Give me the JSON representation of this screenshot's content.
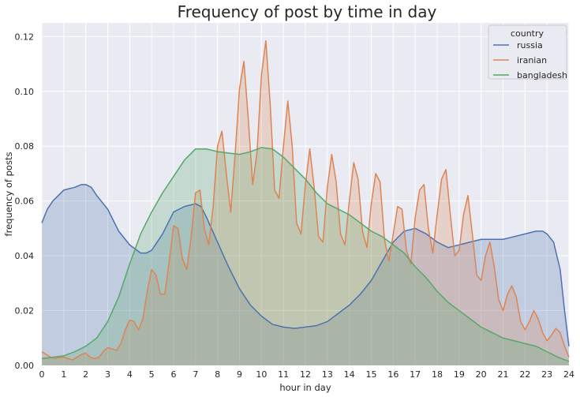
{
  "chart_data": {
    "type": "area",
    "title": "Frequency of post by time in day",
    "xlabel": "hour in day",
    "ylabel": "frequency of posts",
    "xlim": [
      0,
      24
    ],
    "ylim": [
      0,
      0.125
    ],
    "x_ticks": [
      "0",
      "1",
      "2",
      "3",
      "4",
      "5",
      "6",
      "7",
      "8",
      "9",
      "10",
      "11",
      "12",
      "13",
      "14",
      "15",
      "16",
      "17",
      "18",
      "19",
      "20",
      "21",
      "22",
      "23",
      "24"
    ],
    "y_ticks": [
      "0.00",
      "0.02",
      "0.04",
      "0.06",
      "0.08",
      "0.10",
      "0.12"
    ],
    "y_tick_values": [
      0,
      0.02,
      0.04,
      0.06,
      0.08,
      0.1,
      0.12
    ],
    "grid": true,
    "legend": {
      "title": "country",
      "placement": "top-right"
    },
    "series": [
      {
        "name": "russia",
        "color": "#4c72b0",
        "points": [
          [
            0,
            0.052
          ],
          [
            0.25,
            0.057
          ],
          [
            0.5,
            0.06
          ],
          [
            1,
            0.064
          ],
          [
            1.5,
            0.065
          ],
          [
            1.8,
            0.066
          ],
          [
            2,
            0.066
          ],
          [
            2.25,
            0.065
          ],
          [
            2.5,
            0.062
          ],
          [
            3,
            0.057
          ],
          [
            3.5,
            0.049
          ],
          [
            4,
            0.044
          ],
          [
            4.5,
            0.041
          ],
          [
            4.75,
            0.041
          ],
          [
            5,
            0.042
          ],
          [
            5.5,
            0.048
          ],
          [
            6,
            0.056
          ],
          [
            6.5,
            0.058
          ],
          [
            7,
            0.059
          ],
          [
            7.25,
            0.058
          ],
          [
            7.5,
            0.054
          ],
          [
            8,
            0.045
          ],
          [
            8.5,
            0.036
          ],
          [
            9,
            0.028
          ],
          [
            9.5,
            0.022
          ],
          [
            10,
            0.018
          ],
          [
            10.5,
            0.015
          ],
          [
            11,
            0.014
          ],
          [
            11.5,
            0.0135
          ],
          [
            12,
            0.014
          ],
          [
            12.5,
            0.0145
          ],
          [
            13,
            0.016
          ],
          [
            13.5,
            0.019
          ],
          [
            14,
            0.022
          ],
          [
            14.5,
            0.026
          ],
          [
            15,
            0.031
          ],
          [
            15.5,
            0.038
          ],
          [
            16,
            0.045
          ],
          [
            16.5,
            0.049
          ],
          [
            17,
            0.05
          ],
          [
            17.5,
            0.048
          ],
          [
            18,
            0.045
          ],
          [
            18.5,
            0.043
          ],
          [
            19,
            0.044
          ],
          [
            19.5,
            0.045
          ],
          [
            20,
            0.046
          ],
          [
            20.5,
            0.046
          ],
          [
            21,
            0.046
          ],
          [
            21.5,
            0.047
          ],
          [
            22,
            0.048
          ],
          [
            22.5,
            0.049
          ],
          [
            22.8,
            0.049
          ],
          [
            23,
            0.048
          ],
          [
            23.3,
            0.045
          ],
          [
            23.6,
            0.035
          ],
          [
            23.8,
            0.02
          ],
          [
            24,
            0.007
          ]
        ]
      },
      {
        "name": "iranian",
        "color": "#dd8452",
        "points": [
          [
            0,
            0.005
          ],
          [
            0.2,
            0.004
          ],
          [
            0.4,
            0.003
          ],
          [
            0.6,
            0.0025
          ],
          [
            0.8,
            0.003
          ],
          [
            1,
            0.003
          ],
          [
            1.2,
            0.0025
          ],
          [
            1.4,
            0.002
          ],
          [
            1.6,
            0.003
          ],
          [
            1.8,
            0.004
          ],
          [
            2,
            0.0045
          ],
          [
            2.2,
            0.003
          ],
          [
            2.4,
            0.0025
          ],
          [
            2.6,
            0.003
          ],
          [
            2.8,
            0.005
          ],
          [
            3,
            0.0065
          ],
          [
            3.2,
            0.006
          ],
          [
            3.4,
            0.0055
          ],
          [
            3.6,
            0.008
          ],
          [
            3.8,
            0.013
          ],
          [
            4,
            0.0165
          ],
          [
            4.2,
            0.016
          ],
          [
            4.4,
            0.013
          ],
          [
            4.6,
            0.017
          ],
          [
            4.8,
            0.027
          ],
          [
            5,
            0.035
          ],
          [
            5.2,
            0.033
          ],
          [
            5.4,
            0.026
          ],
          [
            5.6,
            0.026
          ],
          [
            5.8,
            0.038
          ],
          [
            6,
            0.051
          ],
          [
            6.2,
            0.05
          ],
          [
            6.4,
            0.039
          ],
          [
            6.6,
            0.035
          ],
          [
            6.8,
            0.047
          ],
          [
            7,
            0.063
          ],
          [
            7.2,
            0.064
          ],
          [
            7.4,
            0.05
          ],
          [
            7.6,
            0.044
          ],
          [
            7.8,
            0.058
          ],
          [
            8,
            0.08
          ],
          [
            8.2,
            0.0855
          ],
          [
            8.4,
            0.07
          ],
          [
            8.6,
            0.056
          ],
          [
            8.8,
            0.077
          ],
          [
            9,
            0.101
          ],
          [
            9.2,
            0.111
          ],
          [
            9.4,
            0.09
          ],
          [
            9.6,
            0.066
          ],
          [
            9.8,
            0.078
          ],
          [
            10,
            0.106
          ],
          [
            10.2,
            0.1185
          ],
          [
            10.4,
            0.095
          ],
          [
            10.6,
            0.064
          ],
          [
            10.8,
            0.061
          ],
          [
            11,
            0.08
          ],
          [
            11.2,
            0.0965
          ],
          [
            11.4,
            0.08
          ],
          [
            11.6,
            0.052
          ],
          [
            11.8,
            0.048
          ],
          [
            12,
            0.066
          ],
          [
            12.2,
            0.079
          ],
          [
            12.4,
            0.065
          ],
          [
            12.6,
            0.047
          ],
          [
            12.8,
            0.045
          ],
          [
            13,
            0.065
          ],
          [
            13.2,
            0.077
          ],
          [
            13.4,
            0.067
          ],
          [
            13.6,
            0.048
          ],
          [
            13.8,
            0.044
          ],
          [
            14,
            0.06
          ],
          [
            14.2,
            0.074
          ],
          [
            14.4,
            0.068
          ],
          [
            14.6,
            0.049
          ],
          [
            14.8,
            0.043
          ],
          [
            15,
            0.059
          ],
          [
            15.2,
            0.07
          ],
          [
            15.4,
            0.067
          ],
          [
            15.6,
            0.046
          ],
          [
            15.8,
            0.038
          ],
          [
            16,
            0.048
          ],
          [
            16.2,
            0.058
          ],
          [
            16.4,
            0.057
          ],
          [
            16.6,
            0.042
          ],
          [
            16.8,
            0.037
          ],
          [
            17,
            0.054
          ],
          [
            17.2,
            0.064
          ],
          [
            17.4,
            0.066
          ],
          [
            17.6,
            0.05
          ],
          [
            17.8,
            0.041
          ],
          [
            18,
            0.055
          ],
          [
            18.2,
            0.068
          ],
          [
            18.4,
            0.0715
          ],
          [
            18.6,
            0.055
          ],
          [
            18.8,
            0.04
          ],
          [
            19,
            0.042
          ],
          [
            19.2,
            0.055
          ],
          [
            19.4,
            0.062
          ],
          [
            19.6,
            0.048
          ],
          [
            19.8,
            0.033
          ],
          [
            20,
            0.031
          ],
          [
            20.2,
            0.04
          ],
          [
            20.4,
            0.045
          ],
          [
            20.6,
            0.036
          ],
          [
            20.8,
            0.024
          ],
          [
            21,
            0.02
          ],
          [
            21.2,
            0.026
          ],
          [
            21.4,
            0.029
          ],
          [
            21.6,
            0.025
          ],
          [
            21.8,
            0.016
          ],
          [
            22,
            0.013
          ],
          [
            22.2,
            0.016
          ],
          [
            22.4,
            0.02
          ],
          [
            22.6,
            0.017
          ],
          [
            22.8,
            0.012
          ],
          [
            23,
            0.009
          ],
          [
            23.2,
            0.011
          ],
          [
            23.4,
            0.0135
          ],
          [
            23.6,
            0.012
          ],
          [
            23.8,
            0.007
          ],
          [
            24,
            0.003
          ]
        ]
      },
      {
        "name": "bangladesh",
        "color": "#55a868",
        "points": [
          [
            0,
            0.0025
          ],
          [
            0.5,
            0.003
          ],
          [
            1,
            0.0035
          ],
          [
            1.5,
            0.005
          ],
          [
            2,
            0.007
          ],
          [
            2.5,
            0.01
          ],
          [
            3,
            0.016
          ],
          [
            3.5,
            0.025
          ],
          [
            4,
            0.037
          ],
          [
            4.5,
            0.048
          ],
          [
            5,
            0.056
          ],
          [
            5.5,
            0.063
          ],
          [
            6,
            0.069
          ],
          [
            6.5,
            0.075
          ],
          [
            7,
            0.079
          ],
          [
            7.5,
            0.079
          ],
          [
            8,
            0.078
          ],
          [
            8.5,
            0.0775
          ],
          [
            9,
            0.077
          ],
          [
            9.5,
            0.078
          ],
          [
            10,
            0.0795
          ],
          [
            10.5,
            0.079
          ],
          [
            11,
            0.076
          ],
          [
            11.5,
            0.072
          ],
          [
            12,
            0.068
          ],
          [
            12.5,
            0.063
          ],
          [
            13,
            0.059
          ],
          [
            13.5,
            0.057
          ],
          [
            14,
            0.055
          ],
          [
            14.5,
            0.052
          ],
          [
            15,
            0.049
          ],
          [
            15.5,
            0.047
          ],
          [
            16,
            0.044
          ],
          [
            16.5,
            0.041
          ],
          [
            17,
            0.036
          ],
          [
            17.5,
            0.032
          ],
          [
            18,
            0.027
          ],
          [
            18.5,
            0.023
          ],
          [
            19,
            0.02
          ],
          [
            19.5,
            0.017
          ],
          [
            20,
            0.014
          ],
          [
            20.5,
            0.012
          ],
          [
            21,
            0.01
          ],
          [
            21.5,
            0.009
          ],
          [
            22,
            0.008
          ],
          [
            22.5,
            0.007
          ],
          [
            23,
            0.005
          ],
          [
            23.5,
            0.003
          ],
          [
            24,
            0.0015
          ]
        ]
      }
    ]
  }
}
